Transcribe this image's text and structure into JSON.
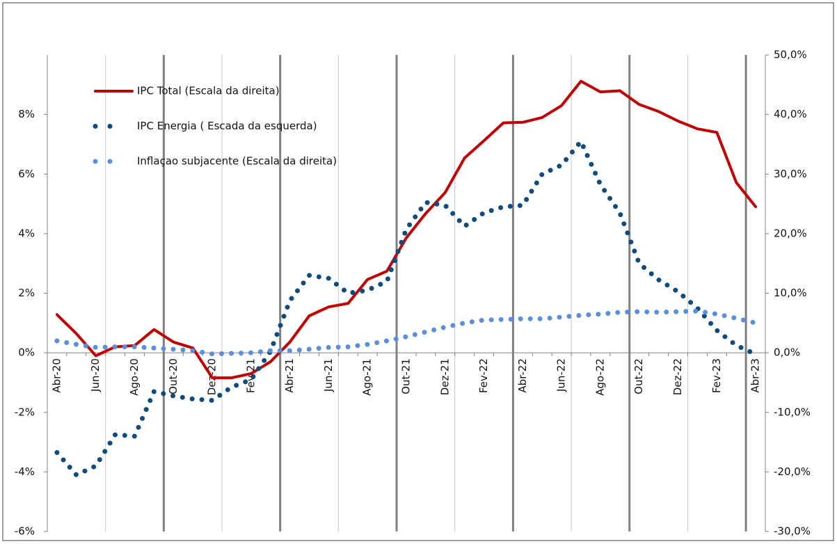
{
  "chart_data": {
    "type": "line",
    "categories": [
      "Abr-20",
      null,
      "Jun-20",
      null,
      "Ago-20",
      null,
      "Out-20",
      null,
      "Dez-20",
      null,
      "Fev-21",
      null,
      "Abr-21",
      null,
      "Jun-21",
      null,
      "Ago-21",
      null,
      "Out-21",
      null,
      "Dez-21",
      null,
      "Fev-22",
      null,
      "Abr-22",
      null,
      "Jun-22",
      null,
      "Ago-22",
      null,
      "Out-22",
      null,
      "Dez-22",
      null,
      "Fev-23",
      null,
      "Abr-23"
    ],
    "series": [
      {
        "name": "IPC Total (Escala da  direita)",
        "color": "#c00000",
        "axis": "y2",
        "line_style": "solid",
        "values": [
          6.4,
          3.2,
          -0.5,
          1.0,
          1.2,
          3.9,
          1.8,
          0.8,
          -4.2,
          -4.2,
          -3.5,
          -1.5,
          1.8,
          6.2,
          7.7,
          8.3,
          12.3,
          13.7,
          19.3,
          23.4,
          26.9,
          32.7,
          35.6,
          38.6,
          38.7,
          39.5,
          41.5,
          45.6,
          43.8,
          44.0,
          41.7,
          40.5,
          38.9,
          37.6,
          37.0,
          28.6,
          24.5
        ]
      },
      {
        "name": "IPC Energia ( Escada da esquerda)",
        "color": "#0d4a7e",
        "axis": "y",
        "line_style": "dots",
        "values": [
          -3.35,
          -4.1,
          -3.8,
          -2.75,
          -2.8,
          -1.3,
          -1.45,
          -1.55,
          -1.6,
          -1.15,
          -0.9,
          0.05,
          1.75,
          2.6,
          2.5,
          2.0,
          2.1,
          2.4,
          4.15,
          5.05,
          4.95,
          4.25,
          4.7,
          4.9,
          4.95,
          6.0,
          6.3,
          7.1,
          5.65,
          4.7,
          3.0,
          2.45,
          2.05,
          1.5,
          0.75,
          0.25,
          -0.05
        ]
      },
      {
        "name": "Inflaçao subjacente (Escala da direita)",
        "color": "#5b8fd9",
        "axis": "y2",
        "line_style": "dots",
        "values": [
          2.0,
          1.4,
          0.9,
          1.0,
          1.0,
          0.8,
          0.6,
          0.35,
          -0.2,
          -0.1,
          0.0,
          0.35,
          0.35,
          0.6,
          0.9,
          1.0,
          1.4,
          2.0,
          2.7,
          3.5,
          4.3,
          5.0,
          5.5,
          5.6,
          5.7,
          5.7,
          6.0,
          6.3,
          6.5,
          6.8,
          6.9,
          6.8,
          6.9,
          7.0,
          6.5,
          5.8,
          5.0
        ]
      }
    ],
    "ylim": [
      -6,
      10
    ],
    "yticks": [
      {
        "value": -6,
        "label": "-6%"
      },
      {
        "value": -4,
        "label": "-4%"
      },
      {
        "value": -2,
        "label": "-2%"
      },
      {
        "value": 0,
        "label": "0%"
      },
      {
        "value": 2,
        "label": "2%"
      },
      {
        "value": 4,
        "label": "4%"
      },
      {
        "value": 6,
        "label": "6%"
      },
      {
        "value": 8,
        "label": "8%"
      }
    ],
    "y2lim": [
      -30,
      50
    ],
    "y2ticks": [
      {
        "value": -30,
        "label": "-30,0%"
      },
      {
        "value": -20,
        "label": "-20,0%"
      },
      {
        "value": -10,
        "label": "-10,0%"
      },
      {
        "value": 0,
        "label": "0,0%"
      },
      {
        "value": 10,
        "label": "10,0%"
      },
      {
        "value": 20,
        "label": "20,0%"
      },
      {
        "value": 30,
        "label": "30,0%"
      },
      {
        "value": 40,
        "label": "40,0%"
      },
      {
        "value": 50,
        "label": "50,0%"
      }
    ],
    "legend": "top-left"
  }
}
